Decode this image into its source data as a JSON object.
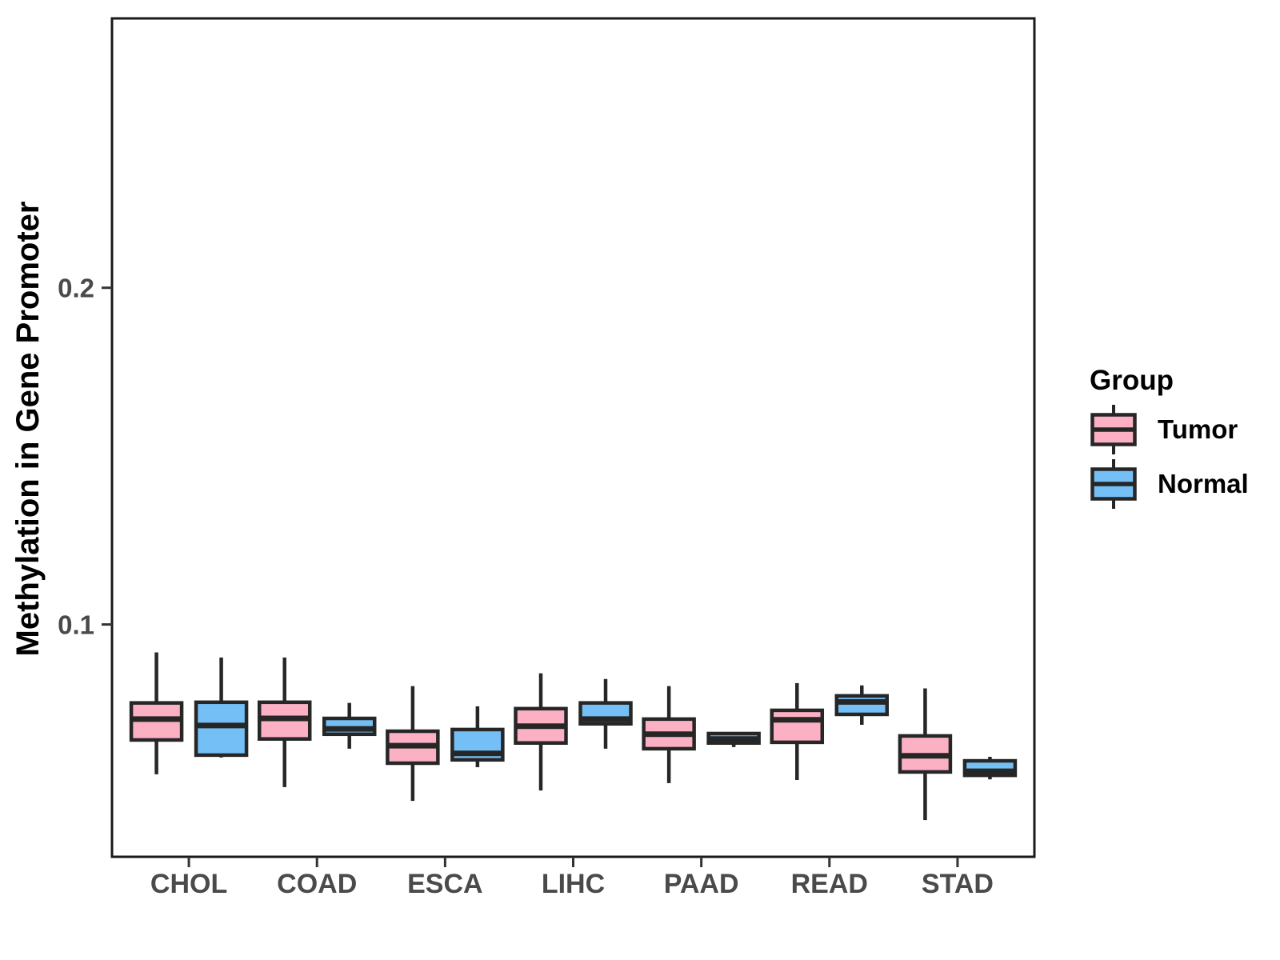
{
  "chart_data": {
    "type": "grouped_boxplot",
    "title": "",
    "xlabel": "",
    "ylabel": "Methylation in Gene Promoter",
    "categories": [
      "CHOL",
      "COAD",
      "ESCA",
      "LIHC",
      "PAAD",
      "READ",
      "STAD"
    ],
    "yticks": [
      0.1,
      0.2
    ],
    "ytick_labels": [
      "0.1",
      "0.2"
    ],
    "ylim": [
      0.031,
      0.28
    ],
    "grid": false,
    "legend": {
      "title": "Group",
      "position": "right"
    },
    "colors": {
      "tumor_fill": "#FBB0C4",
      "normal_fill": "#74C0F6",
      "box_stroke": "#262626",
      "axis_text": "#4a4a4a",
      "axis_title": "#000000",
      "panel_border": "#1a1a1a"
    },
    "series": [
      {
        "name": "Tumor",
        "fill": "#FBB0C4",
        "boxes": [
          {
            "category": "CHOL",
            "low": 0.0555,
            "q1": 0.0657,
            "median": 0.0719,
            "q3": 0.0767,
            "high": 0.0917
          },
          {
            "category": "COAD",
            "low": 0.0517,
            "q1": 0.066,
            "median": 0.0721,
            "q3": 0.0769,
            "high": 0.0902
          },
          {
            "category": "ESCA",
            "low": 0.0476,
            "q1": 0.0588,
            "median": 0.064,
            "q3": 0.0683,
            "high": 0.0817
          },
          {
            "category": "LIHC",
            "low": 0.0507,
            "q1": 0.0648,
            "median": 0.0698,
            "q3": 0.075,
            "high": 0.0855
          },
          {
            "category": "PAAD",
            "low": 0.0529,
            "q1": 0.0631,
            "median": 0.0674,
            "q3": 0.0719,
            "high": 0.0817
          },
          {
            "category": "READ",
            "low": 0.0538,
            "q1": 0.065,
            "median": 0.0717,
            "q3": 0.0745,
            "high": 0.0826
          },
          {
            "category": "STAD",
            "low": 0.0419,
            "q1": 0.0562,
            "median": 0.061,
            "q3": 0.0669,
            "high": 0.081
          }
        ]
      },
      {
        "name": "Normal",
        "fill": "#74C0F6",
        "boxes": [
          {
            "category": "CHOL",
            "low": 0.0605,
            "q1": 0.0612,
            "median": 0.07,
            "q3": 0.0769,
            "high": 0.0902
          },
          {
            "category": "COAD",
            "low": 0.0631,
            "q1": 0.0674,
            "median": 0.069,
            "q3": 0.0721,
            "high": 0.0767
          },
          {
            "category": "ESCA",
            "low": 0.0576,
            "q1": 0.0598,
            "median": 0.0617,
            "q3": 0.0688,
            "high": 0.0757
          },
          {
            "category": "LIHC",
            "low": 0.0631,
            "q1": 0.0705,
            "median": 0.0719,
            "q3": 0.0767,
            "high": 0.0838
          },
          {
            "category": "PAAD",
            "low": 0.0636,
            "q1": 0.0648,
            "median": 0.066,
            "q3": 0.0676,
            "high": 0.0676
          },
          {
            "category": "READ",
            "low": 0.0702,
            "q1": 0.0733,
            "median": 0.077,
            "q3": 0.0788,
            "high": 0.0819
          },
          {
            "category": "STAD",
            "low": 0.054,
            "q1": 0.0552,
            "median": 0.0564,
            "q3": 0.0595,
            "high": 0.0607
          }
        ]
      }
    ]
  }
}
